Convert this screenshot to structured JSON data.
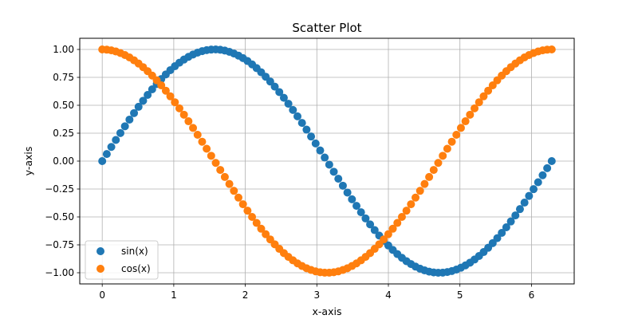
{
  "chart_data": {
    "type": "scatter",
    "title": "Scatter Plot",
    "xlabel": "x-axis",
    "ylabel": "y-axis",
    "xlim": [
      -0.3142,
      6.5973
    ],
    "ylim": [
      -1.1,
      1.1
    ],
    "xticks": [
      0,
      1,
      2,
      3,
      4,
      5,
      6
    ],
    "xtick_labels": [
      "0",
      "1",
      "2",
      "3",
      "4",
      "5",
      "6"
    ],
    "yticks": [
      -1.0,
      -0.75,
      -0.5,
      -0.25,
      0.0,
      0.25,
      0.5,
      0.75,
      1.0
    ],
    "ytick_labels": [
      "−1.00",
      "−0.75",
      "−0.50",
      "−0.25",
      "0.00",
      "0.25",
      "0.50",
      "0.75",
      "1.00"
    ],
    "grid": true,
    "legend": "lower-left",
    "x": [
      0.0,
      0.0635,
      0.1269,
      0.1904,
      0.2539,
      0.3173,
      0.3808,
      0.4443,
      0.5077,
      0.5712,
      0.6347,
      0.6981,
      0.7616,
      0.8251,
      0.8885,
      0.952,
      1.0155,
      1.0789,
      1.1424,
      1.2059,
      1.2693,
      1.3328,
      1.3963,
      1.4597,
      1.5232,
      1.5867,
      1.6501,
      1.7136,
      1.7771,
      1.8405,
      1.904,
      1.9675,
      2.0309,
      2.0944,
      2.1579,
      2.2213,
      2.2848,
      2.3483,
      2.4117,
      2.4752,
      2.5387,
      2.6021,
      2.6656,
      2.7291,
      2.7925,
      2.856,
      2.9195,
      2.9829,
      3.0464,
      3.1099,
      3.1733,
      3.2368,
      3.3003,
      3.3637,
      3.4272,
      3.4907,
      3.5541,
      3.6176,
      3.6811,
      3.7445,
      3.808,
      3.8715,
      3.9349,
      3.9984,
      4.0619,
      4.1253,
      4.1888,
      4.2523,
      4.3157,
      4.3792,
      4.4427,
      4.5061,
      4.5696,
      4.6331,
      4.6965,
      4.76,
      4.8235,
      4.8869,
      4.9504,
      5.0139,
      5.0773,
      5.1408,
      5.2043,
      5.2677,
      5.3312,
      5.3947,
      5.4581,
      5.5216,
      5.5851,
      5.6485,
      5.712,
      5.7755,
      5.8389,
      5.9024,
      5.9659,
      6.0293,
      6.0928,
      6.1563,
      6.2197,
      6.2832
    ],
    "series": [
      {
        "name": "sin(x)",
        "color": "#1f77b4",
        "values": [
          0.0,
          0.0634,
          0.1266,
          0.1893,
          0.2511,
          0.312,
          0.3717,
          0.4298,
          0.4862,
          0.5406,
          0.5929,
          0.6428,
          0.6901,
          0.7346,
          0.7761,
          0.8146,
          0.8497,
          0.8815,
          0.9096,
          0.9341,
          0.9549,
          0.9718,
          0.9848,
          0.9938,
          0.9989,
          0.9999,
          0.9969,
          0.9898,
          0.9788,
          0.9638,
          0.945,
          0.9224,
          0.896,
          0.866,
          0.8326,
          0.7958,
          0.7557,
          0.7127,
          0.6668,
          0.6182,
          0.5671,
          0.5137,
          0.4582,
          0.4009,
          0.342,
          0.2817,
          0.2203,
          0.158,
          0.0951,
          0.0317,
          -0.0317,
          -0.0951,
          -0.158,
          -0.2203,
          -0.2817,
          -0.342,
          -0.4009,
          -0.4582,
          -0.5137,
          -0.5671,
          -0.6182,
          -0.6668,
          -0.7127,
          -0.7557,
          -0.7958,
          -0.8326,
          -0.866,
          -0.896,
          -0.9224,
          -0.945,
          -0.9638,
          -0.9788,
          -0.9898,
          -0.9969,
          -0.9999,
          -0.9989,
          -0.9938,
          -0.9848,
          -0.9718,
          -0.9549,
          -0.9341,
          -0.9096,
          -0.8815,
          -0.8497,
          -0.8146,
          -0.7761,
          -0.7346,
          -0.6901,
          -0.6428,
          -0.5929,
          -0.5406,
          -0.4862,
          -0.4298,
          -0.3717,
          -0.312,
          -0.2511,
          -0.1893,
          -0.1266,
          -0.0634,
          0.0
        ]
      },
      {
        "name": "cos(x)",
        "color": "#ff7f0e",
        "values": [
          1.0,
          0.998,
          0.992,
          0.9819,
          0.9679,
          0.9501,
          0.9284,
          0.9029,
          0.8738,
          0.8413,
          0.8053,
          0.766,
          0.7237,
          0.6785,
          0.6306,
          0.5801,
          0.5272,
          0.4723,
          0.4154,
          0.3569,
          0.2969,
          0.2358,
          0.1736,
          0.1108,
          0.0476,
          -0.0159,
          -0.0792,
          -0.1423,
          -0.2048,
          -0.2665,
          -0.3271,
          -0.3863,
          -0.4441,
          -0.5,
          -0.5539,
          -0.6056,
          -0.6549,
          -0.7015,
          -0.7453,
          -0.7861,
          -0.8237,
          -0.858,
          -0.8888,
          -0.9161,
          -0.9397,
          -0.9595,
          -0.9754,
          -0.9874,
          -0.9955,
          -0.9995,
          -0.9995,
          -0.9955,
          -0.9874,
          -0.9754,
          -0.9595,
          -0.9397,
          -0.9161,
          -0.8888,
          -0.858,
          -0.8237,
          -0.7861,
          -0.7453,
          -0.7015,
          -0.6549,
          -0.6056,
          -0.5539,
          -0.5,
          -0.4441,
          -0.3863,
          -0.3271,
          -0.2665,
          -0.2048,
          -0.1423,
          -0.0792,
          -0.0159,
          0.0476,
          0.1108,
          0.1736,
          0.2358,
          0.2969,
          0.3569,
          0.4154,
          0.4723,
          0.5272,
          0.5801,
          0.6306,
          0.6785,
          0.7237,
          0.766,
          0.8053,
          0.8413,
          0.8738,
          0.9029,
          0.9284,
          0.9501,
          0.9679,
          0.9819,
          0.992,
          0.998,
          1.0
        ]
      }
    ]
  }
}
